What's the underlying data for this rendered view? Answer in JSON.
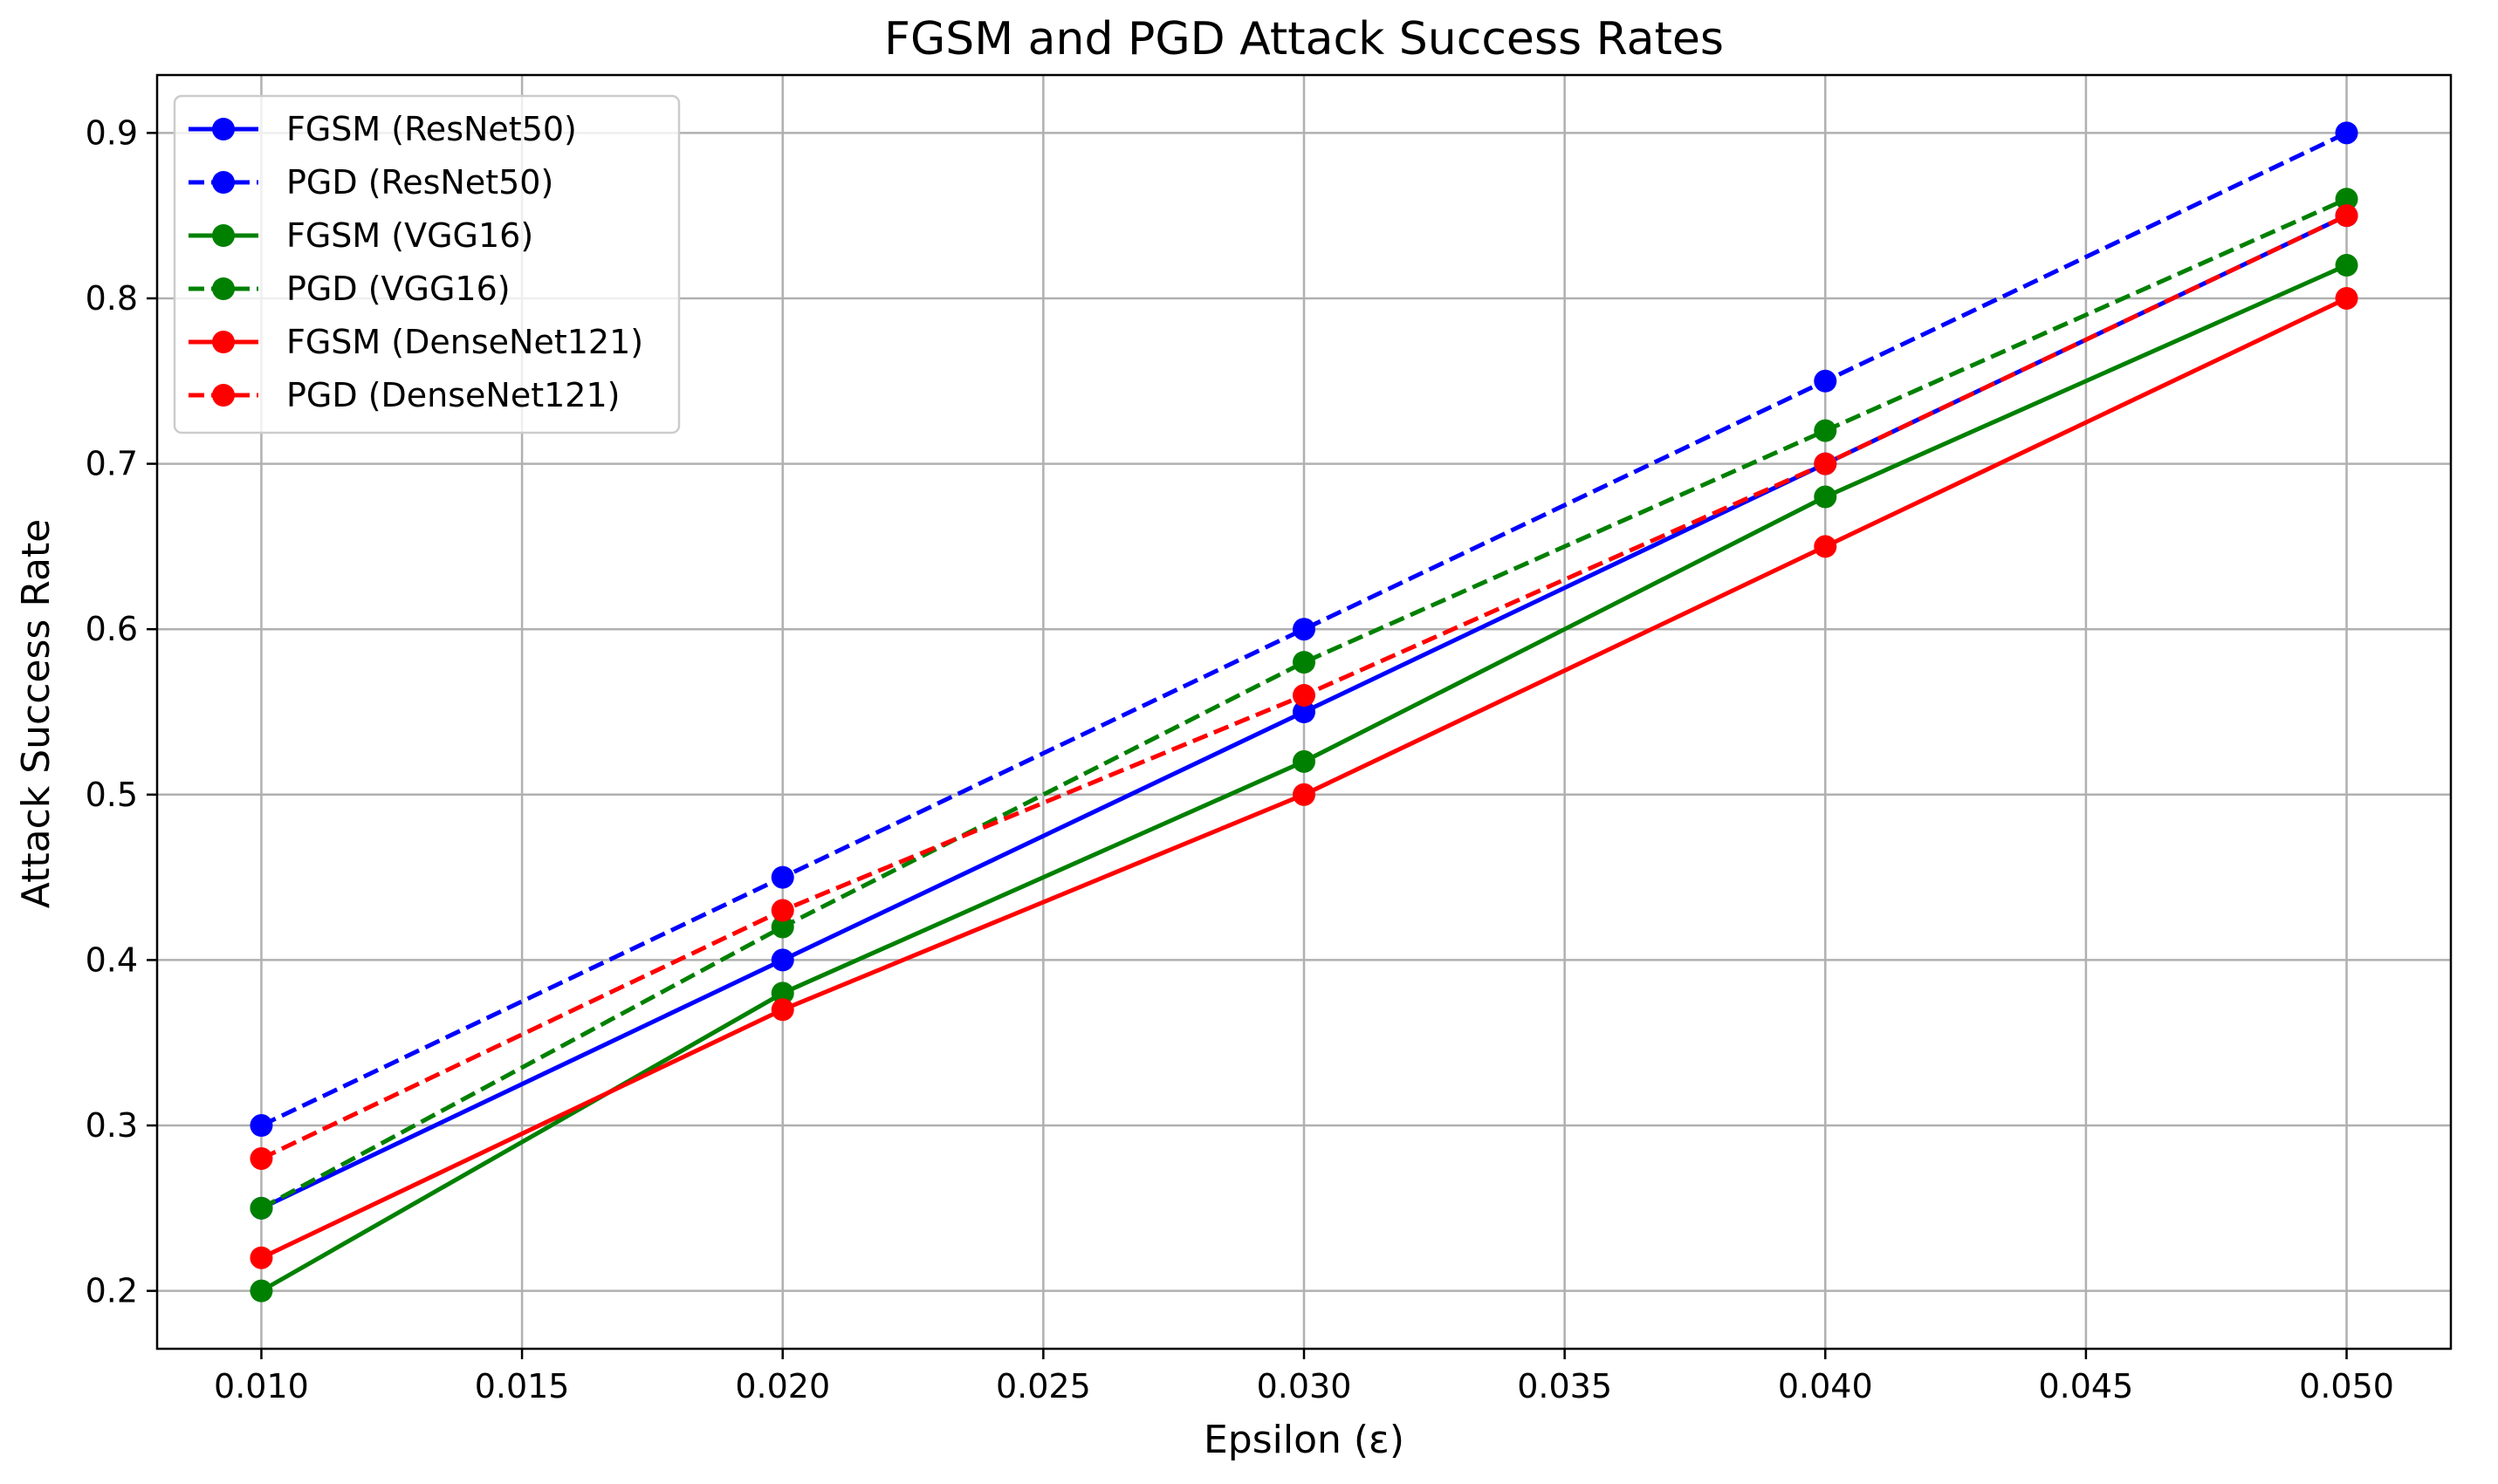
{
  "chart_data": {
    "type": "line",
    "title": "FGSM and PGD Attack Success Rates",
    "xlabel": "Epsilon (ε)",
    "ylabel": "Attack Success Rate",
    "x": [
      0.01,
      0.02,
      0.03,
      0.04,
      0.05
    ],
    "xlim": [
      0.008,
      0.052
    ],
    "ylim": [
      0.165,
      0.935
    ],
    "xticks": [
      0.01,
      0.015,
      0.02,
      0.025,
      0.03,
      0.035,
      0.04,
      0.045,
      0.05
    ],
    "xtick_labels": [
      "0.010",
      "0.015",
      "0.020",
      "0.025",
      "0.030",
      "0.035",
      "0.040",
      "0.045",
      "0.050"
    ],
    "yticks": [
      0.2,
      0.3,
      0.4,
      0.5,
      0.6,
      0.7,
      0.8,
      0.9
    ],
    "ytick_labels": [
      "0.2",
      "0.3",
      "0.4",
      "0.5",
      "0.6",
      "0.7",
      "0.8",
      "0.9"
    ],
    "grid": true,
    "legend_position": "top-left",
    "series": [
      {
        "name": "FGSM (ResNet50)",
        "color": "#0000ff",
        "style": "solid",
        "values": [
          0.25,
          0.4,
          0.55,
          0.7,
          0.85
        ]
      },
      {
        "name": "PGD (ResNet50)",
        "color": "#0000ff",
        "style": "dashed",
        "values": [
          0.3,
          0.45,
          0.6,
          0.75,
          0.9
        ]
      },
      {
        "name": "FGSM (VGG16)",
        "color": "#008000",
        "style": "solid",
        "values": [
          0.2,
          0.38,
          0.52,
          0.68,
          0.82
        ]
      },
      {
        "name": "PGD (VGG16)",
        "color": "#008000",
        "style": "dashed",
        "values": [
          0.25,
          0.42,
          0.58,
          0.72,
          0.86
        ]
      },
      {
        "name": "FGSM (DenseNet121)",
        "color": "#ff0000",
        "style": "solid",
        "values": [
          0.22,
          0.37,
          0.5,
          0.65,
          0.8
        ]
      },
      {
        "name": "PGD (DenseNet121)",
        "color": "#ff0000",
        "style": "dashed",
        "values": [
          0.28,
          0.43,
          0.56,
          0.7,
          0.85
        ]
      }
    ]
  }
}
